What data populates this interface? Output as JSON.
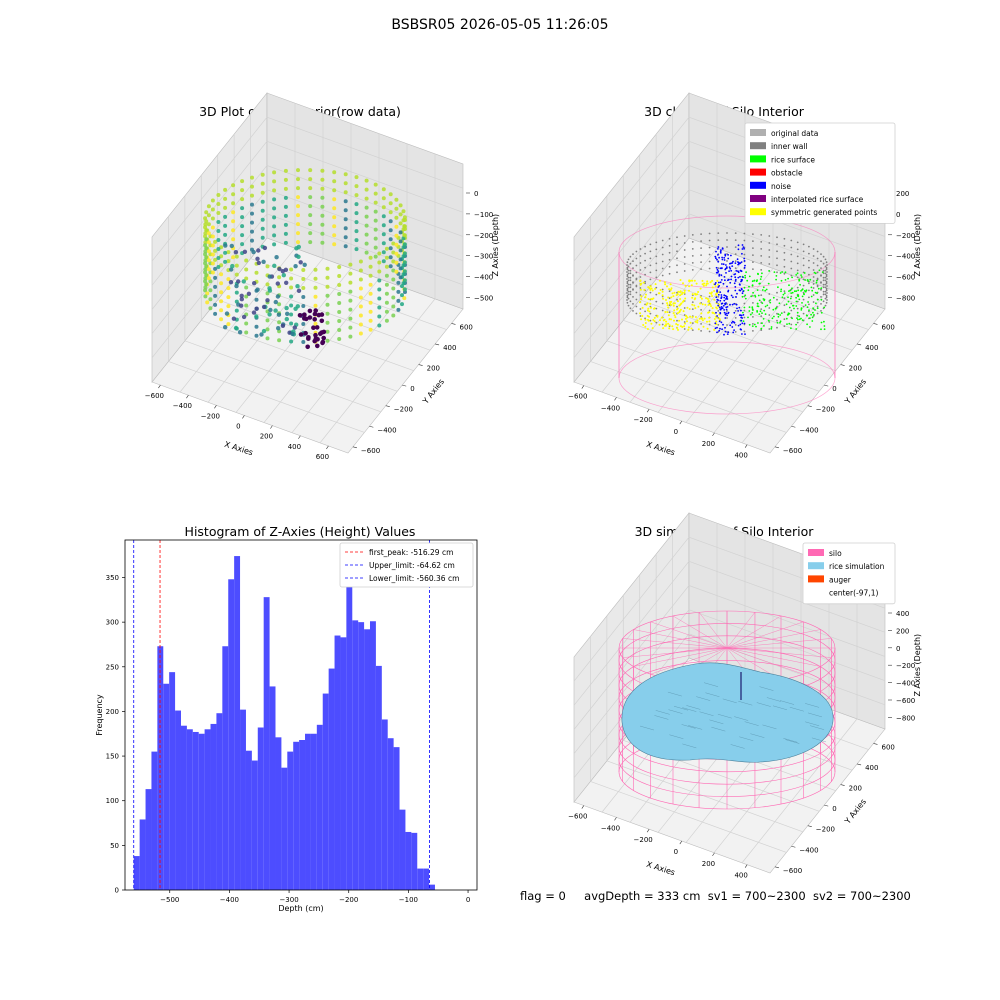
{
  "suptitle": "BSBSR05 2026-05-05 11:26:05",
  "status_line": {
    "flag": "flag = 0",
    "avg_depth": "avgDepth = 333 cm",
    "sv1": "sv1 = 700~2300",
    "sv2": "sv2 = 700~2300"
  },
  "colors": {
    "histogram_bar": "#4d4dff",
    "first_peak_line": "#ff0000",
    "limit_lines": "#0000ff",
    "silo": "#ff69b4",
    "rice_simulation": "#87ceeb",
    "auger": "#ff4500",
    "original_data": "#b0b0b0",
    "inner_wall": "#808080",
    "rice_surface": "#00ff00",
    "obstacle": "#ff0000",
    "noise": "#0000ff",
    "interpolated_rice_surface": "#800080",
    "symmetric_generated_points": "#ffff00"
  },
  "chart_data": [
    {
      "type": "scatter",
      "title": "3D Plot of Silo Interior(row data)",
      "xlabel": "X Axies",
      "ylabel": "Y Axies",
      "zlabel": "Z Axies (Depth)",
      "x_ticks": [
        "−600",
        "−400",
        "−200",
        "0",
        "200",
        "400",
        "600"
      ],
      "y_ticks": [
        "−600",
        "−400",
        "−200",
        "0",
        "200",
        "400",
        "600"
      ],
      "z_ticks": [
        "0",
        "−100",
        "−200",
        "−300",
        "−400",
        "−500"
      ],
      "colormap": "viridis"
    },
    {
      "type": "scatter",
      "title": "3D classify of Silo Interior",
      "xlabel": "X Axies",
      "ylabel": "Y Axies",
      "zlabel": "Z Axies (Depth)",
      "x_ticks": [
        "−600",
        "−400",
        "−200",
        "0",
        "200",
        "400"
      ],
      "y_ticks": [
        "−600",
        "−400",
        "−200",
        "0",
        "200",
        "400",
        "600"
      ],
      "z_ticks": [
        "200",
        "0",
        "−200",
        "−400",
        "−600",
        "−800"
      ],
      "legend_position": "top-right",
      "legend": [
        {
          "label": "original data",
          "color": "#b0b0b0"
        },
        {
          "label": "inner wall",
          "color": "#808080"
        },
        {
          "label": "rice surface",
          "color": "#00ff00"
        },
        {
          "label": "obstacle",
          "color": "#ff0000"
        },
        {
          "label": "noise",
          "color": "#0000ff"
        },
        {
          "label": "interpolated rice surface",
          "color": "#800080"
        },
        {
          "label": "symmetric generated points",
          "color": "#ffff00"
        }
      ]
    },
    {
      "type": "bar",
      "title": "Histogram of Z-Axies (Height) Values",
      "xlabel": "Depth (cm)",
      "ylabel": "Frequency",
      "xlim": [
        -575,
        15
      ],
      "ylim": [
        0,
        392
      ],
      "x_ticks": [
        -500,
        -400,
        -300,
        -200,
        -100,
        0
      ],
      "x_tick_labels": [
        "−500",
        "−400",
        "−300",
        "−200",
        "−100",
        "0"
      ],
      "y_ticks": [
        0,
        50,
        100,
        150,
        200,
        250,
        300,
        350
      ],
      "bin_start": -560.36,
      "bin_width": 9.9,
      "values": [
        38,
        79,
        113,
        155,
        273,
        231,
        244,
        201,
        184,
        180,
        177,
        175,
        180,
        186,
        198,
        273,
        348,
        374,
        202,
        156,
        145,
        182,
        328,
        228,
        171,
        137,
        155,
        166,
        168,
        175,
        175,
        185,
        220,
        248,
        285,
        283,
        340,
        302,
        300,
        292,
        301,
        251,
        191,
        170,
        160,
        90,
        65,
        64,
        24,
        24,
        6
      ],
      "legend_position": "top-right",
      "lines": [
        {
          "label": "first_peak: -516.29 cm",
          "x": -516.29,
          "color": "#ff0000"
        },
        {
          "label": "Upper_limit: -64.62 cm",
          "x": -64.62,
          "color": "#0000ff"
        },
        {
          "label": "Lower_limit: -560.36 cm",
          "x": -560.36,
          "color": "#0000ff"
        }
      ]
    },
    {
      "type": "scatter",
      "title": "3D simulation of Silo Interior",
      "xlabel": "X Axies",
      "ylabel": "Y Axies",
      "zlabel": "Z Axies (Depth)",
      "x_ticks": [
        "−600",
        "−400",
        "−200",
        "0",
        "200",
        "400"
      ],
      "y_ticks": [
        "−600",
        "−400",
        "−200",
        "0",
        "200",
        "400",
        "600"
      ],
      "z_ticks": [
        "400",
        "200",
        "0",
        "−200",
        "−400",
        "−600",
        "−800"
      ],
      "legend_position": "top-right",
      "legend": [
        {
          "label": "silo",
          "color": "#ff69b4"
        },
        {
          "label": "rice simulation",
          "color": "#87ceeb"
        },
        {
          "label": "auger",
          "color": "#ff4500"
        },
        {
          "label": "center(-97,1)",
          "color": "#ffffff"
        }
      ]
    }
  ]
}
